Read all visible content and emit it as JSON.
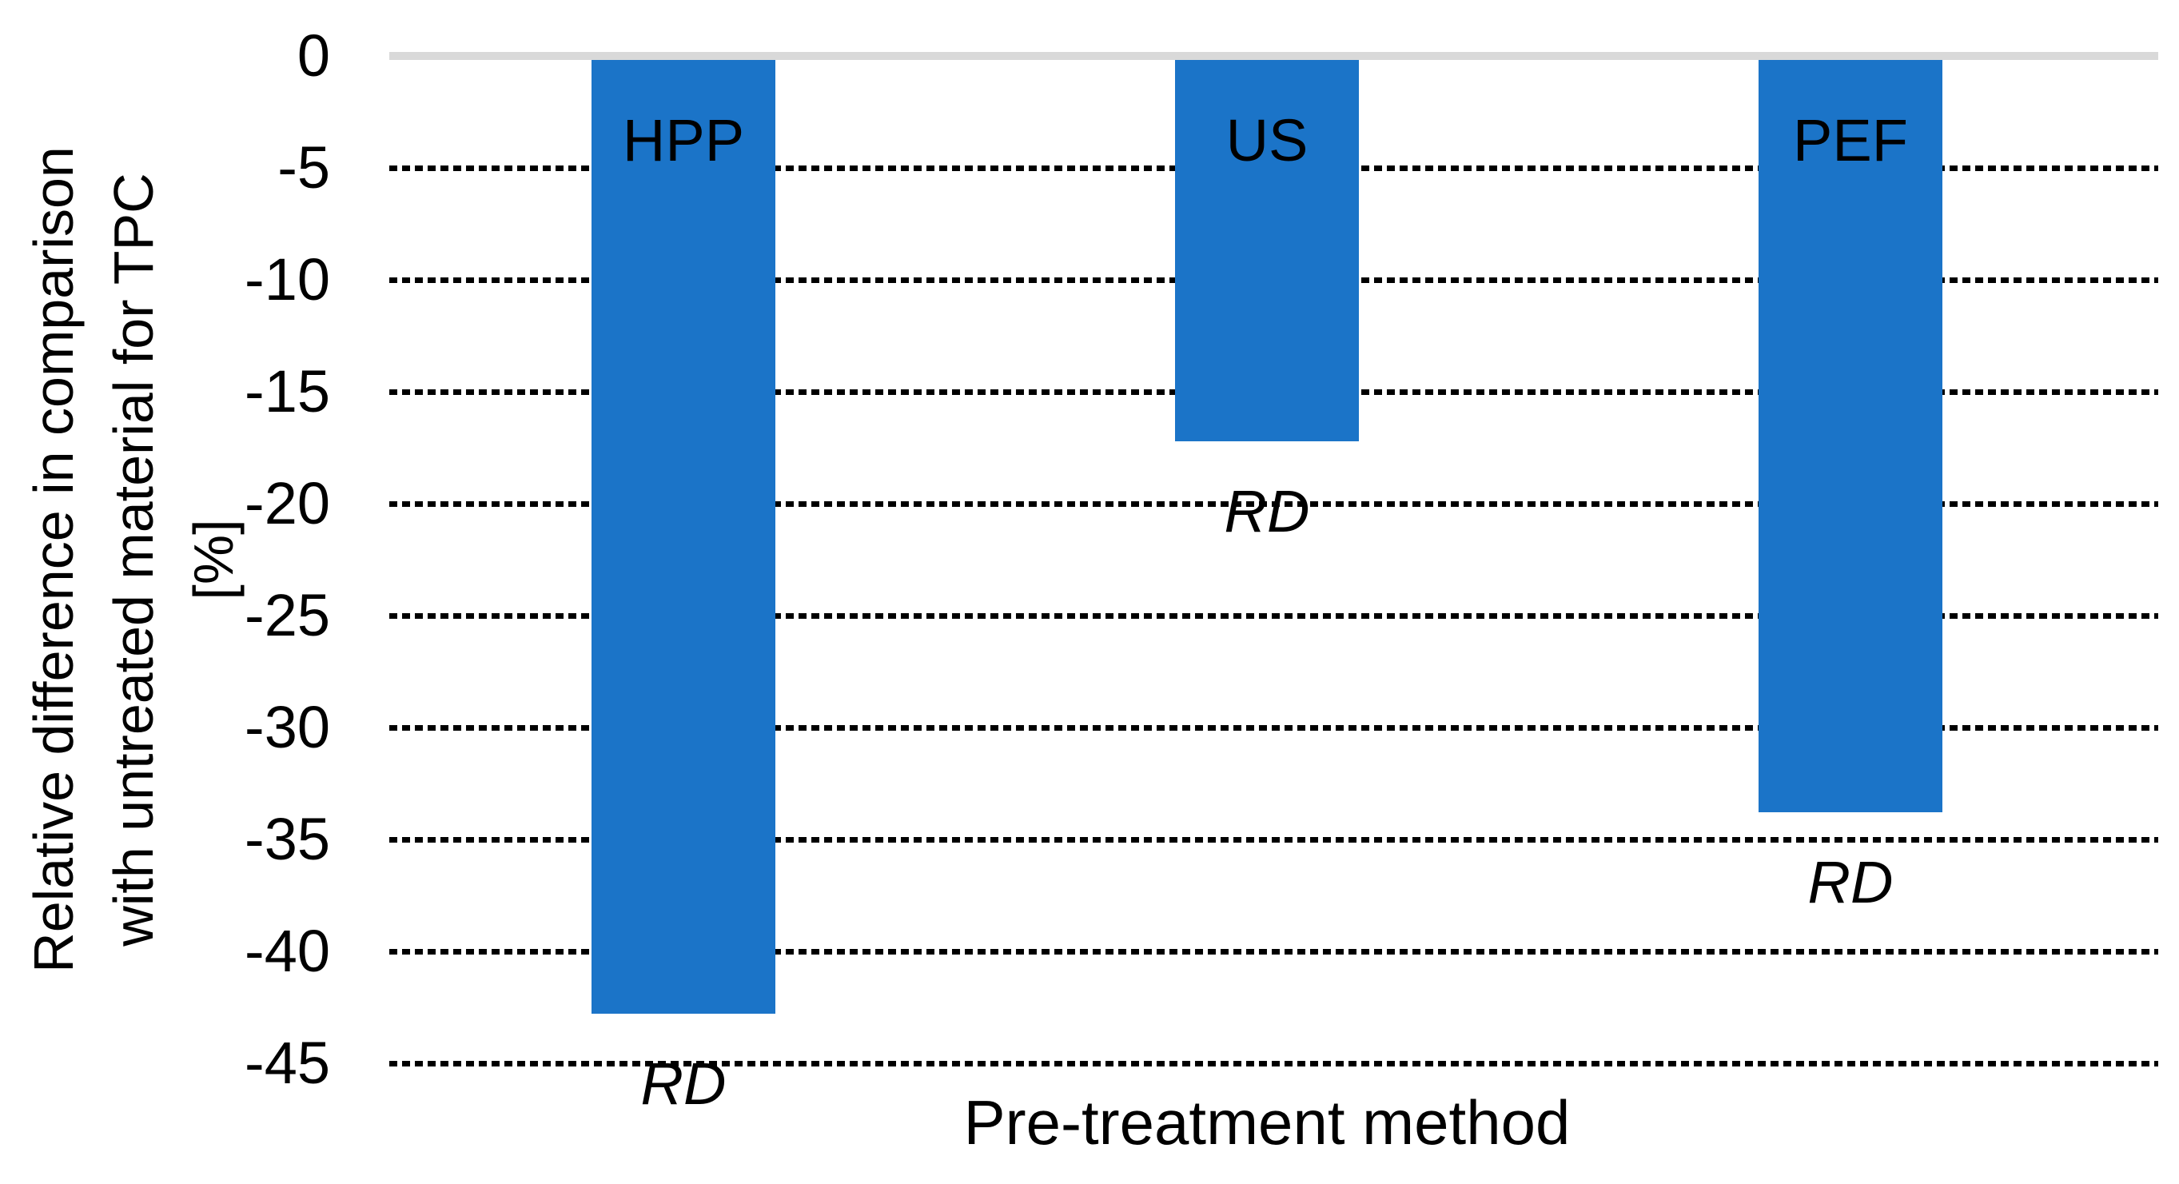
{
  "chart_data": {
    "type": "bar",
    "title": "",
    "xlabel": "Pre-treatment method",
    "ylabel": "Relative difference in comparison with untreated material for TPC [%]",
    "ylabel_lines": [
      "Relative difference in comparison",
      "with untreated material for TPC",
      "[%]"
    ],
    "categories": [
      "HPP",
      "US",
      "PEF"
    ],
    "values": [
      -42.8,
      -17.2,
      -33.8
    ],
    "bar_annotations": [
      "RD",
      "RD",
      "RD"
    ],
    "yticks": [
      0,
      -5,
      -10,
      -15,
      -20,
      -25,
      -30,
      -35,
      -40,
      -45
    ],
    "ylim": [
      -45,
      0
    ],
    "grid": "dotted-horizontal-black",
    "legend": "none",
    "colors": {
      "bar": "#1B74C8",
      "zero_line": "#D9D9D9",
      "gridline": "#000000",
      "text": "#000000",
      "background": "#FFFFFF"
    }
  }
}
